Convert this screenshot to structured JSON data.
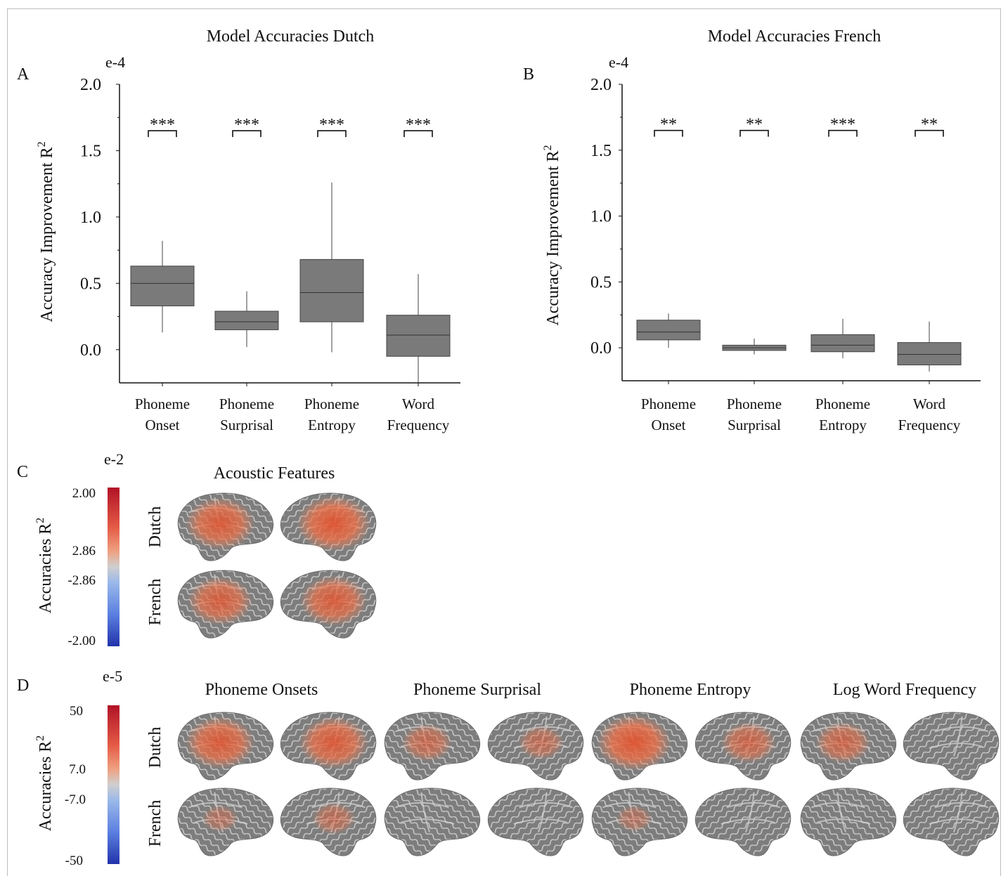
{
  "chart_data": [
    {
      "type": "box",
      "panel": "A",
      "title": "Model Accuracies Dutch",
      "scale_label": "e-4",
      "ylabel": "Accuracy Improvement R",
      "ylabel_sup": "2",
      "ylim": [
        -0.25,
        2.0
      ],
      "yticks": [
        0.0,
        0.5,
        1.0,
        1.5,
        2.0
      ],
      "ytick_labels": [
        "0.0",
        "0.5",
        "1.0",
        "1.5",
        "2.0"
      ],
      "categories": [
        {
          "line1": "Phoneme",
          "line2": "Onset"
        },
        {
          "line1": "Phoneme",
          "line2": "Surprisal"
        },
        {
          "line1": "Phoneme",
          "line2": "Entropy"
        },
        {
          "line1": "Word",
          "line2": "Frequency"
        }
      ],
      "boxes": [
        {
          "whisker_low": 0.13,
          "q1": 0.33,
          "median": 0.5,
          "q3": 0.63,
          "whisker_high": 0.82
        },
        {
          "whisker_low": 0.02,
          "q1": 0.15,
          "median": 0.21,
          "q3": 0.29,
          "whisker_high": 0.44
        },
        {
          "whisker_low": -0.02,
          "q1": 0.21,
          "median": 0.43,
          "q3": 0.68,
          "whisker_high": 1.26
        },
        {
          "whisker_low": -0.25,
          "q1": -0.05,
          "median": 0.11,
          "q3": 0.26,
          "whisker_high": 0.57
        }
      ],
      "significance": [
        "***",
        "***",
        "***",
        "***"
      ],
      "significance_y": 1.65
    },
    {
      "type": "box",
      "panel": "B",
      "title": "Model Accuracies French",
      "scale_label": "e-4",
      "ylabel": "Accuracy Improvement R",
      "ylabel_sup": "2",
      "ylim": [
        -0.25,
        2.0
      ],
      "yticks": [
        0.0,
        0.5,
        1.0,
        1.5,
        2.0
      ],
      "ytick_labels": [
        "0.0",
        "0.5",
        "1.0",
        "1.5",
        "2.0"
      ],
      "categories": [
        {
          "line1": "Phoneme",
          "line2": "Onset"
        },
        {
          "line1": "Phoneme",
          "line2": "Surprisal"
        },
        {
          "line1": "Phoneme",
          "line2": "Entropy"
        },
        {
          "line1": "Word",
          "line2": "Frequency"
        }
      ],
      "boxes": [
        {
          "whisker_low": 0.0,
          "q1": 0.06,
          "median": 0.12,
          "q3": 0.21,
          "whisker_high": 0.26
        },
        {
          "whisker_low": -0.05,
          "q1": -0.02,
          "median": 0.0,
          "q3": 0.02,
          "whisker_high": 0.07
        },
        {
          "whisker_low": -0.08,
          "q1": -0.03,
          "median": 0.02,
          "q3": 0.1,
          "whisker_high": 0.22
        },
        {
          "whisker_low": -0.18,
          "q1": -0.13,
          "median": -0.05,
          "q3": 0.04,
          "whisker_high": 0.2
        }
      ],
      "significance": [
        "**",
        "**",
        "***",
        "**"
      ],
      "significance_y": 1.65
    }
  ],
  "panels": {
    "A": "A",
    "B": "B",
    "C": {
      "label": "C",
      "scale_label": "e-2",
      "colorbar_label": "Accuracies R",
      "colorbar_sup": "2",
      "ticks": [
        "2.00",
        "2.86",
        "-2.86",
        "-2.00"
      ],
      "title": "Acoustic Features",
      "rows": [
        "Dutch",
        "French"
      ],
      "activation": {
        "Dutch": [
          0.85,
          0.95
        ],
        "French": [
          0.75,
          0.8
        ]
      }
    },
    "D": {
      "label": "D",
      "scale_label": "e-5",
      "colorbar_label": "Accuracies R",
      "colorbar_sup": "2",
      "ticks": [
        "50",
        "7.0",
        "-7.0",
        "-50"
      ],
      "titles": [
        "Phoneme Onsets",
        "Phoneme Surprisal",
        "Phoneme Entropy",
        "Log Word Frequency"
      ],
      "rows": [
        "Dutch",
        "French"
      ],
      "activation": {
        "Dutch": [
          0.85,
          0.85,
          0.45,
          0.35,
          0.95,
          0.55,
          0.55,
          0.0
        ],
        "French": [
          0.15,
          0.3,
          0.0,
          0.0,
          0.15,
          0.0,
          0.0,
          0.0
        ]
      }
    }
  },
  "colors": {
    "box_fill": "#7a7a7a",
    "box_stroke": "#444444",
    "brain_gray": "#8a8a8a",
    "activation": "#e8663f",
    "colorbar_top": "#b11226",
    "colorbar_bottom": "#2233aa"
  }
}
